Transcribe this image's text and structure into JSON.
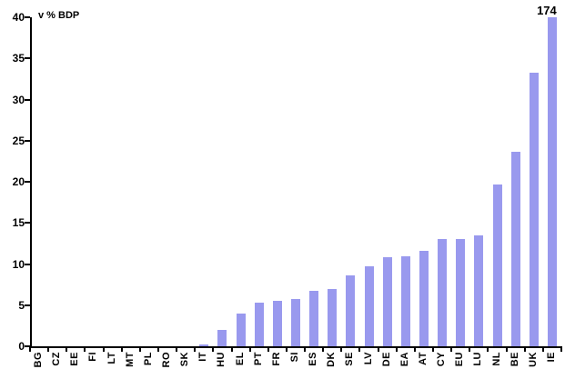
{
  "chart_data": {
    "type": "bar",
    "title": "v % BDP",
    "categories": [
      "BG",
      "CZ",
      "EE",
      "FI",
      "LT",
      "MT",
      "PL",
      "RO",
      "SK",
      "IT",
      "HU",
      "EL",
      "PT",
      "FR",
      "SI",
      "ES",
      "DK",
      "SE",
      "LV",
      "DE",
      "EA",
      "AT",
      "CY",
      "EU",
      "LU",
      "NL",
      "BE",
      "UK",
      "IE"
    ],
    "values": [
      0,
      0,
      0,
      0,
      0,
      0,
      0,
      0,
      0,
      0.2,
      2.0,
      4.0,
      5.3,
      5.5,
      5.7,
      6.7,
      7.0,
      8.6,
      9.7,
      10.8,
      10.9,
      11.6,
      13.0,
      13.0,
      13.5,
      19.7,
      23.7,
      33.3,
      174
    ],
    "xlabel": "",
    "ylabel": "v % BDP",
    "ylim": [
      0,
      40
    ],
    "yticks": [
      0,
      5,
      10,
      15,
      20,
      25,
      30,
      35,
      40
    ],
    "grid": false,
    "legend": null,
    "clip_at_ymax": true,
    "bar_color": "#9999EE",
    "axis_color": "#000000",
    "annotations": [
      {
        "category": "IE",
        "text": "174"
      }
    ]
  }
}
